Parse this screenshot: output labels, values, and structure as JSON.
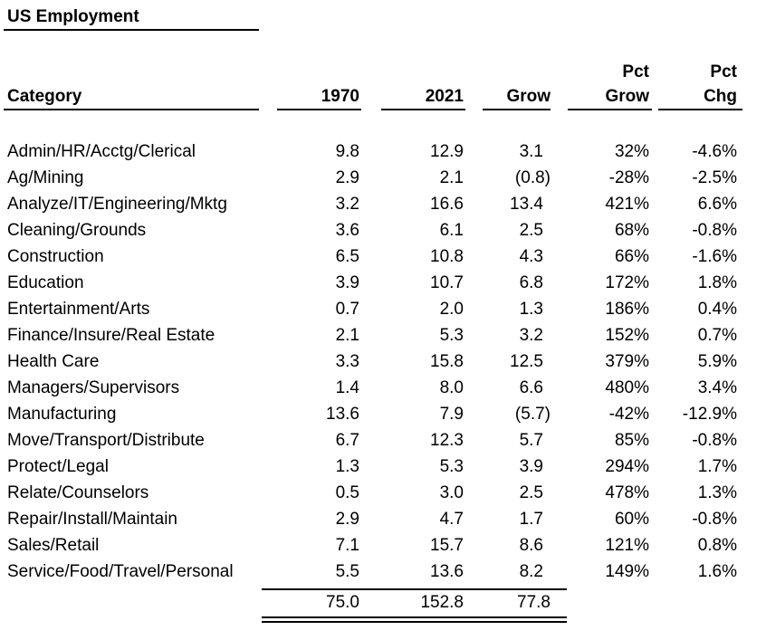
{
  "title": "US Employment",
  "table": {
    "pct_headers": [
      "Pct",
      "Pct"
    ],
    "columns": [
      "Category",
      "1970",
      "2021",
      "Grow",
      "Grow",
      "Chg"
    ],
    "rows": [
      [
        "Admin/HR/Acctg/Clerical",
        "9.8",
        "12.9",
        "3.1",
        "32%",
        "-4.6%"
      ],
      [
        "Ag/Mining",
        "2.9",
        "2.1",
        "(0.8)",
        "-28%",
        "-2.5%"
      ],
      [
        "Analyze/IT/Engineering/Mktg",
        "3.2",
        "16.6",
        "13.4",
        "421%",
        "6.6%"
      ],
      [
        "Cleaning/Grounds",
        "3.6",
        "6.1",
        "2.5",
        "68%",
        "-0.8%"
      ],
      [
        "Construction",
        "6.5",
        "10.8",
        "4.3",
        "66%",
        "-1.6%"
      ],
      [
        "Education",
        "3.9",
        "10.7",
        "6.8",
        "172%",
        "1.8%"
      ],
      [
        "Entertainment/Arts",
        "0.7",
        "2.0",
        "1.3",
        "186%",
        "0.4%"
      ],
      [
        "Finance/Insure/Real Estate",
        "2.1",
        "5.3",
        "3.2",
        "152%",
        "0.7%"
      ],
      [
        "Health Care",
        "3.3",
        "15.8",
        "12.5",
        "379%",
        "5.9%"
      ],
      [
        "Managers/Supervisors",
        "1.4",
        "8.0",
        "6.6",
        "480%",
        "3.4%"
      ],
      [
        "Manufacturing",
        "13.6",
        "7.9",
        "(5.7)",
        "-42%",
        "-12.9%"
      ],
      [
        "Move/Transport/Distribute",
        "6.7",
        "12.3",
        "5.7",
        "85%",
        "-0.8%"
      ],
      [
        "Protect/Legal",
        "1.3",
        "5.3",
        "3.9",
        "294%",
        "1.7%"
      ],
      [
        "Relate/Counselors",
        "0.5",
        "3.0",
        "2.5",
        "478%",
        "1.3%"
      ],
      [
        "Repair/Install/Maintain",
        "2.9",
        "4.7",
        "1.7",
        "60%",
        "-0.8%"
      ],
      [
        "Sales/Retail",
        "7.1",
        "15.7",
        "8.6",
        "121%",
        "0.8%"
      ],
      [
        "Service/Food/Travel/Personal",
        "5.5",
        "13.6",
        "8.2",
        "149%",
        "1.6%"
      ]
    ],
    "totals": [
      "",
      "75.0",
      "152.8",
      "77.8",
      "",
      ""
    ]
  },
  "colors": {
    "text": "#000000",
    "background": "#ffffff",
    "rule": "#000000"
  }
}
